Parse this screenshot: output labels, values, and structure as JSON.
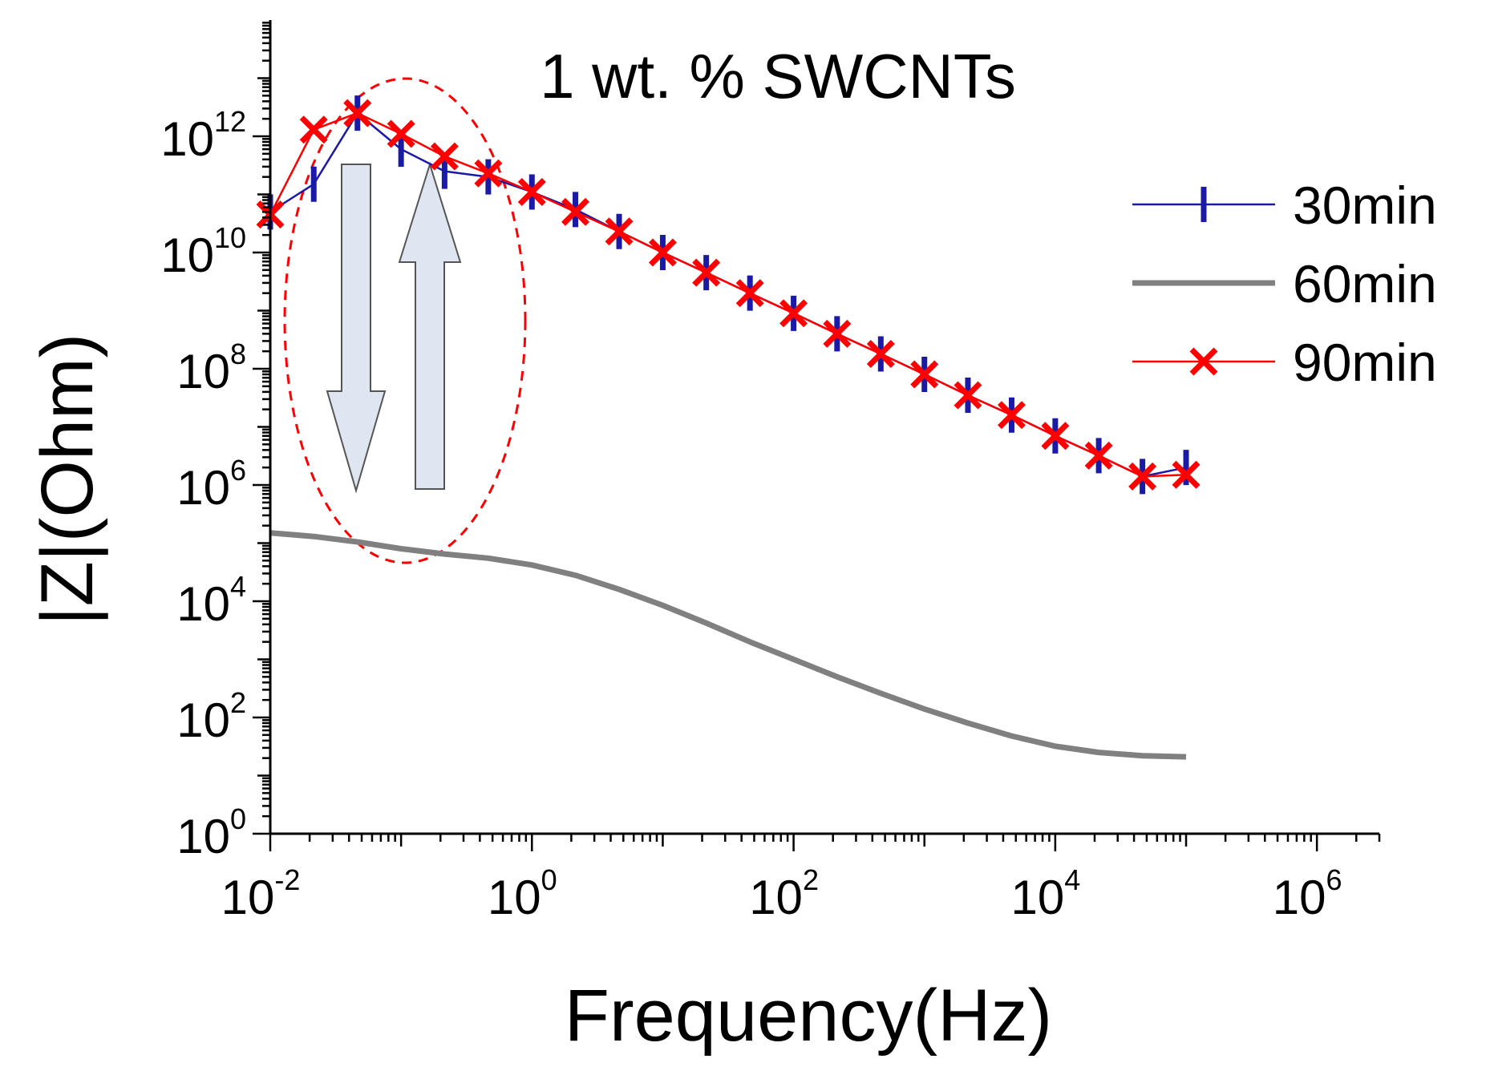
{
  "chart_data": {
    "type": "line",
    "title": "",
    "annotation": "1 wt. % SWCNTs",
    "xlabel": "Frequency(Hz)",
    "ylabel": "|Z|(Ohm)",
    "x_scale": "log",
    "y_scale": "log",
    "xlim": [
      0.01,
      3000000
    ],
    "ylim": [
      1,
      100000000000000.0
    ],
    "grid": false,
    "legend_position": "right",
    "x_ticks": [
      {
        "value": 0.01,
        "base": "10",
        "exp": "-2"
      },
      {
        "value": 1,
        "base": "10",
        "exp": "0"
      },
      {
        "value": 100,
        "base": "10",
        "exp": "2"
      },
      {
        "value": 10000,
        "base": "10",
        "exp": "4"
      },
      {
        "value": 1000000,
        "base": "10",
        "exp": "6"
      }
    ],
    "y_ticks": [
      {
        "value": 1,
        "base": "10",
        "exp": "0"
      },
      {
        "value": 100,
        "base": "10",
        "exp": "2"
      },
      {
        "value": 10000,
        "base": "10",
        "exp": "4"
      },
      {
        "value": 1000000,
        "base": "10",
        "exp": "6"
      },
      {
        "value": 100000000,
        "base": "10",
        "exp": "8"
      },
      {
        "value": 10000000000,
        "base": "10",
        "exp": "10"
      },
      {
        "value": 1000000000000,
        "base": "10",
        "exp": "12"
      }
    ],
    "series": [
      {
        "name": "30min",
        "color": "#1a1aa6",
        "marker": "vertical-bar",
        "x": [
          0.01,
          0.0215,
          0.0464,
          0.1,
          0.215,
          0.464,
          1,
          2.15,
          4.64,
          10,
          21.5,
          46.4,
          100,
          215,
          464,
          1000,
          2150,
          4640,
          10000,
          21500,
          46400,
          100000
        ],
        "y": [
          50000000000.0,
          150000000000.0,
          2500000000000.0,
          600000000000.0,
          250000000000.0,
          200000000000.0,
          110000000000.0,
          55000000000.0,
          23000000000.0,
          10000000000.0,
          4500000000.0,
          2000000000.0,
          900000000.0,
          400000000.0,
          180000000.0,
          80000000.0,
          35000000.0,
          16000000.0,
          7000000.0,
          3200000.0,
          1400000.0,
          2000000.0
        ]
      },
      {
        "name": "60min",
        "color": "#808080",
        "marker": "none",
        "x": [
          0.01,
          0.0215,
          0.0464,
          0.1,
          0.215,
          0.464,
          1,
          2.15,
          4.64,
          10,
          21.5,
          46.4,
          100,
          215,
          464,
          1000,
          2150,
          4640,
          10000,
          21500,
          46400,
          100000
        ],
        "y": [
          150000,
          130000,
          105000,
          80000,
          65000,
          55000,
          42000,
          28000,
          16000,
          8500,
          4200,
          2000,
          1000,
          500,
          260,
          140,
          80,
          48,
          32,
          25,
          22,
          21
        ]
      },
      {
        "name": "90min",
        "color": "#ff0000",
        "marker": "x",
        "x": [
          0.01,
          0.0215,
          0.0464,
          0.1,
          0.215,
          0.464,
          1,
          2.15,
          4.64,
          10,
          21.5,
          46.4,
          100,
          215,
          464,
          1000,
          2150,
          4640,
          10000,
          21500,
          46400,
          100000
        ],
        "y": [
          45000000000.0,
          1300000000000.0,
          2500000000000.0,
          1100000000000.0,
          450000000000.0,
          230000000000.0,
          110000000000.0,
          50000000000.0,
          23000000000.0,
          10000000000.0,
          4500000000.0,
          2000000000.0,
          900000000.0,
          400000000.0,
          180000000.0,
          80000000.0,
          35000000.0,
          16000000.0,
          7000000.0,
          3200000.0,
          1400000.0,
          1500000.0
        ]
      }
    ],
    "decorations": {
      "ellipse_color": "#ff0000",
      "arrow_fill": "#dfe6f2",
      "arrow_stroke": "#555555",
      "arrows": [
        "down",
        "up"
      ]
    }
  }
}
